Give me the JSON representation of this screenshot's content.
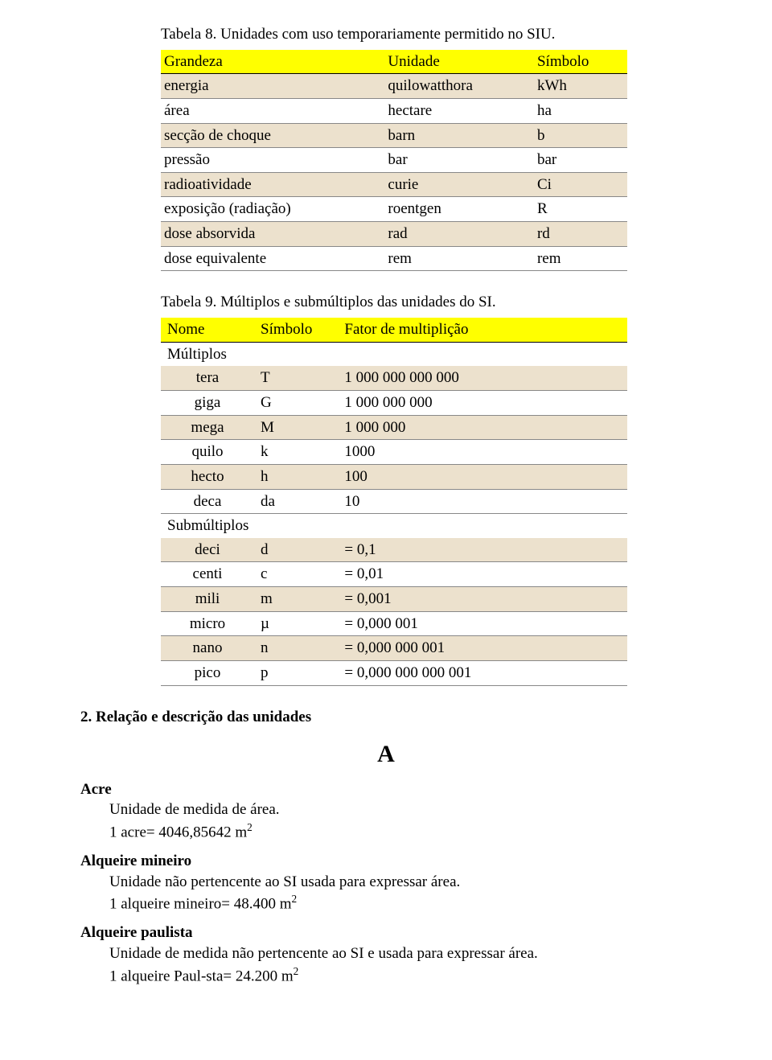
{
  "t1": {
    "caption": "Tabela 8. Unidades com uso temporariamente permitido no SIU.",
    "headers": [
      "Grandeza",
      "Unidade",
      "Símbolo"
    ],
    "rows": [
      [
        "energia",
        "quilowatthora",
        "kWh"
      ],
      [
        "área",
        "hectare",
        "ha"
      ],
      [
        "secção de choque",
        "barn",
        "b"
      ],
      [
        "pressão",
        "bar",
        "bar"
      ],
      [
        "radioatividade",
        "curie",
        "Ci"
      ],
      [
        "exposição (radiação)",
        "roentgen",
        "R"
      ],
      [
        "dose absorvida",
        "rad",
        "rd"
      ],
      [
        "dose equivalente",
        "rem",
        "rem"
      ]
    ]
  },
  "t2": {
    "caption": "Tabela 9. Múltiplos e submúltiplos das unidades do SI.",
    "headers": [
      "Nome",
      "Símbolo",
      "Fator de multiplição"
    ],
    "sub1": "Múltiplos",
    "mult": [
      [
        "tera",
        "T",
        "1 000 000 000 000"
      ],
      [
        "giga",
        "G",
        "1 000 000 000"
      ],
      [
        "mega",
        "M",
        "1 000 000"
      ],
      [
        "quilo",
        "k",
        "1000"
      ],
      [
        "hecto",
        "h",
        "100"
      ],
      [
        "deca",
        "da",
        "10"
      ]
    ],
    "sub2": "Submúltiplos",
    "submult": [
      [
        "deci",
        "d",
        "= 0,1"
      ],
      [
        "centi",
        "c",
        "= 0,01"
      ],
      [
        "mili",
        "m",
        "= 0,001"
      ],
      [
        "micro",
        "µ",
        "= 0,000 001"
      ],
      [
        "nano",
        "n",
        "= 0,000 000 001"
      ],
      [
        "pico",
        "p",
        "= 0,000 000 000 001"
      ]
    ]
  },
  "section": "2. Relação e descrição das unidades",
  "letter": "A",
  "entries": {
    "acre": {
      "term": "Acre",
      "def1": "Unidade de medida de área.",
      "def2a": "1 acre= 4046,85642 m",
      "def2b": "2"
    },
    "alqmin": {
      "term": "Alqueire mineiro",
      "def1": "Unidade não pertencente ao SI usada para expressar área.",
      "def2a": "1 alqueire mineiro= 48.400 m",
      "def2b": "2"
    },
    "alqpau": {
      "term": "Alqueire paulista",
      "def1": "Unidade de medida não pertencente ao SI e usada para expressar área.",
      "def2a": "1 alqueire Paul-sta= 24.200 m",
      "def2b": "2"
    }
  }
}
